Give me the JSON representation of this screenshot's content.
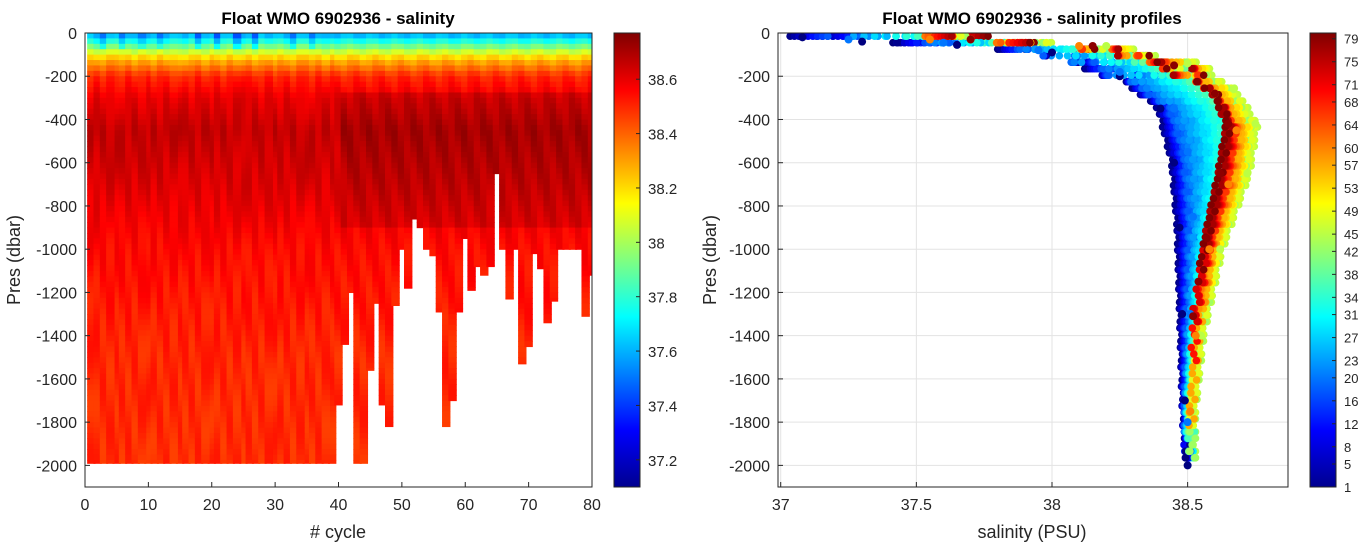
{
  "chart_data": [
    {
      "type": "heatmap",
      "title": "Float WMO 6902936 - salinity",
      "xlabel": "# cycle",
      "ylabel": "Pres (dbar)",
      "xlim": [
        0,
        80
      ],
      "ylim": [
        -2100,
        0
      ],
      "xticks": [
        "0",
        "10",
        "20",
        "30",
        "40",
        "50",
        "60",
        "70",
        "80"
      ],
      "yticks": [
        "0",
        "-200",
        "-400",
        "-600",
        "-800",
        "-1000",
        "-1200",
        "-1400",
        "-1600",
        "-1800",
        "-2000"
      ],
      "grid": false,
      "colorbar": {
        "range": [
          37.1,
          38.77
        ],
        "ticks": [
          "37.2",
          "37.4",
          "37.6",
          "37.8",
          "38",
          "38.2",
          "38.4",
          "38.6"
        ],
        "colormap": "jet"
      },
      "profile_max_depth": [
        {
          "cycle": 1,
          "depth": -1990
        },
        {
          "cycle": 5,
          "depth": -1990
        },
        {
          "cycle": 10,
          "depth": -1990
        },
        {
          "cycle": 15,
          "depth": -1990
        },
        {
          "cycle": 20,
          "depth": -1990
        },
        {
          "cycle": 25,
          "depth": -1990
        },
        {
          "cycle": 30,
          "depth": -1990
        },
        {
          "cycle": 35,
          "depth": -1990
        },
        {
          "cycle": 39,
          "depth": -1990
        },
        {
          "cycle": 40,
          "depth": -1720
        },
        {
          "cycle": 41,
          "depth": -1440
        },
        {
          "cycle": 42,
          "depth": -1200
        },
        {
          "cycle": 43,
          "depth": -1990
        },
        {
          "cycle": 44,
          "depth": -1990
        },
        {
          "cycle": 45,
          "depth": -1560
        },
        {
          "cycle": 46,
          "depth": -1250
        },
        {
          "cycle": 47,
          "depth": -1720
        },
        {
          "cycle": 48,
          "depth": -1820
        },
        {
          "cycle": 49,
          "depth": -1260
        },
        {
          "cycle": 50,
          "depth": -1000
        },
        {
          "cycle": 51,
          "depth": -1180
        },
        {
          "cycle": 52,
          "depth": -860
        },
        {
          "cycle": 53,
          "depth": -900
        },
        {
          "cycle": 54,
          "depth": -1000
        },
        {
          "cycle": 55,
          "depth": -1030
        },
        {
          "cycle": 56,
          "depth": -1290
        },
        {
          "cycle": 57,
          "depth": -1820
        },
        {
          "cycle": 58,
          "depth": -1700
        },
        {
          "cycle": 59,
          "depth": -1290
        },
        {
          "cycle": 60,
          "depth": -950
        },
        {
          "cycle": 61,
          "depth": -1190
        },
        {
          "cycle": 62,
          "depth": -1080
        },
        {
          "cycle": 63,
          "depth": -1120
        },
        {
          "cycle": 64,
          "depth": -1080
        },
        {
          "cycle": 65,
          "depth": -650
        },
        {
          "cycle": 66,
          "depth": -1000
        },
        {
          "cycle": 67,
          "depth": -1230
        },
        {
          "cycle": 68,
          "depth": -1000
        },
        {
          "cycle": 69,
          "depth": -1530
        },
        {
          "cycle": 70,
          "depth": -1450
        },
        {
          "cycle": 71,
          "depth": -1020
        },
        {
          "cycle": 72,
          "depth": -1090
        },
        {
          "cycle": 73,
          "depth": -1340
        },
        {
          "cycle": 74,
          "depth": -1240
        },
        {
          "cycle": 75,
          "depth": -1000
        },
        {
          "cycle": 76,
          "depth": -1000
        },
        {
          "cycle": 77,
          "depth": -1000
        },
        {
          "cycle": 78,
          "depth": -1000
        },
        {
          "cycle": 79,
          "depth": -1310
        },
        {
          "cycle": 80,
          "depth": -1120
        }
      ],
      "salinity_by_depth": [
        {
          "pres": 0,
          "salinity": 37.55
        },
        {
          "pres": -60,
          "salinity": 37.9
        },
        {
          "pres": -120,
          "salinity": 38.25
        },
        {
          "pres": -200,
          "salinity": 38.5
        },
        {
          "pres": -300,
          "salinity": 38.6
        },
        {
          "pres": -450,
          "salinity": 38.66
        },
        {
          "pres": -700,
          "salinity": 38.62
        },
        {
          "pres": -1000,
          "salinity": 38.55
        },
        {
          "pres": -1500,
          "salinity": 38.5
        },
        {
          "pres": -2000,
          "salinity": 38.49
        }
      ]
    },
    {
      "type": "scatter",
      "title": "Float WMO 6902936 - salinity profiles",
      "xlabel": "salinity (PSU)",
      "ylabel": "Pres (dbar)",
      "xlim": [
        36.99,
        38.87
      ],
      "ylim": [
        -2100,
        0
      ],
      "xticks": [
        "37",
        "37.5",
        "38",
        "38.5"
      ],
      "yticks": [
        "0",
        "-200",
        "-400",
        "-600",
        "-800",
        "-1000",
        "-1200",
        "-1400",
        "-1600",
        "-1800",
        "-2000"
      ],
      "grid": true,
      "colorbar": {
        "range": [
          1,
          80
        ],
        "ticks": [
          "1",
          "5",
          "8",
          "12",
          "16",
          "20",
          "23",
          "27",
          "31",
          "34",
          "38",
          "42",
          "45",
          "49",
          "53",
          "57",
          "60",
          "64",
          "68",
          "71",
          "75",
          "79"
        ],
        "colormap": "jet"
      },
      "series": [
        {
          "cycle": 1,
          "x": [
            37.08,
            37.3,
            37.65,
            38.0,
            38.25,
            38.4,
            38.45,
            38.47,
            38.48,
            38.49,
            38.5
          ],
          "y": [
            -20,
            -40,
            -55,
            -90,
            -200,
            -350,
            -600,
            -900,
            -1300,
            -1700,
            -2000
          ]
        },
        {
          "cycle": 20,
          "x": [
            37.25,
            37.6,
            37.95,
            38.25,
            38.45,
            38.5,
            38.52,
            38.51,
            38.5
          ],
          "y": [
            -30,
            -45,
            -80,
            -180,
            -350,
            -550,
            -850,
            -1300,
            -1800
          ]
        },
        {
          "cycle": 45,
          "x": [
            37.7,
            38.2,
            38.5,
            38.67,
            38.75,
            38.72,
            38.62,
            38.55,
            38.52
          ],
          "y": [
            -30,
            -60,
            -140,
            -260,
            -420,
            -650,
            -1000,
            -1400,
            -1750
          ]
        },
        {
          "cycle": 60,
          "x": [
            37.55,
            38.1,
            38.45,
            38.6,
            38.68,
            38.65,
            38.58,
            38.53,
            38.51
          ],
          "y": [
            -30,
            -60,
            -150,
            -280,
            -450,
            -700,
            -1000,
            -1400,
            -1750
          ]
        },
        {
          "cycle": 79,
          "x": [
            37.7,
            38.15,
            38.45,
            38.6,
            38.65,
            38.62,
            38.57,
            38.54,
            38.52
          ],
          "y": [
            -30,
            -60,
            -150,
            -280,
            -420,
            -650,
            -950,
            -1150,
            -1310
          ]
        }
      ]
    }
  ]
}
